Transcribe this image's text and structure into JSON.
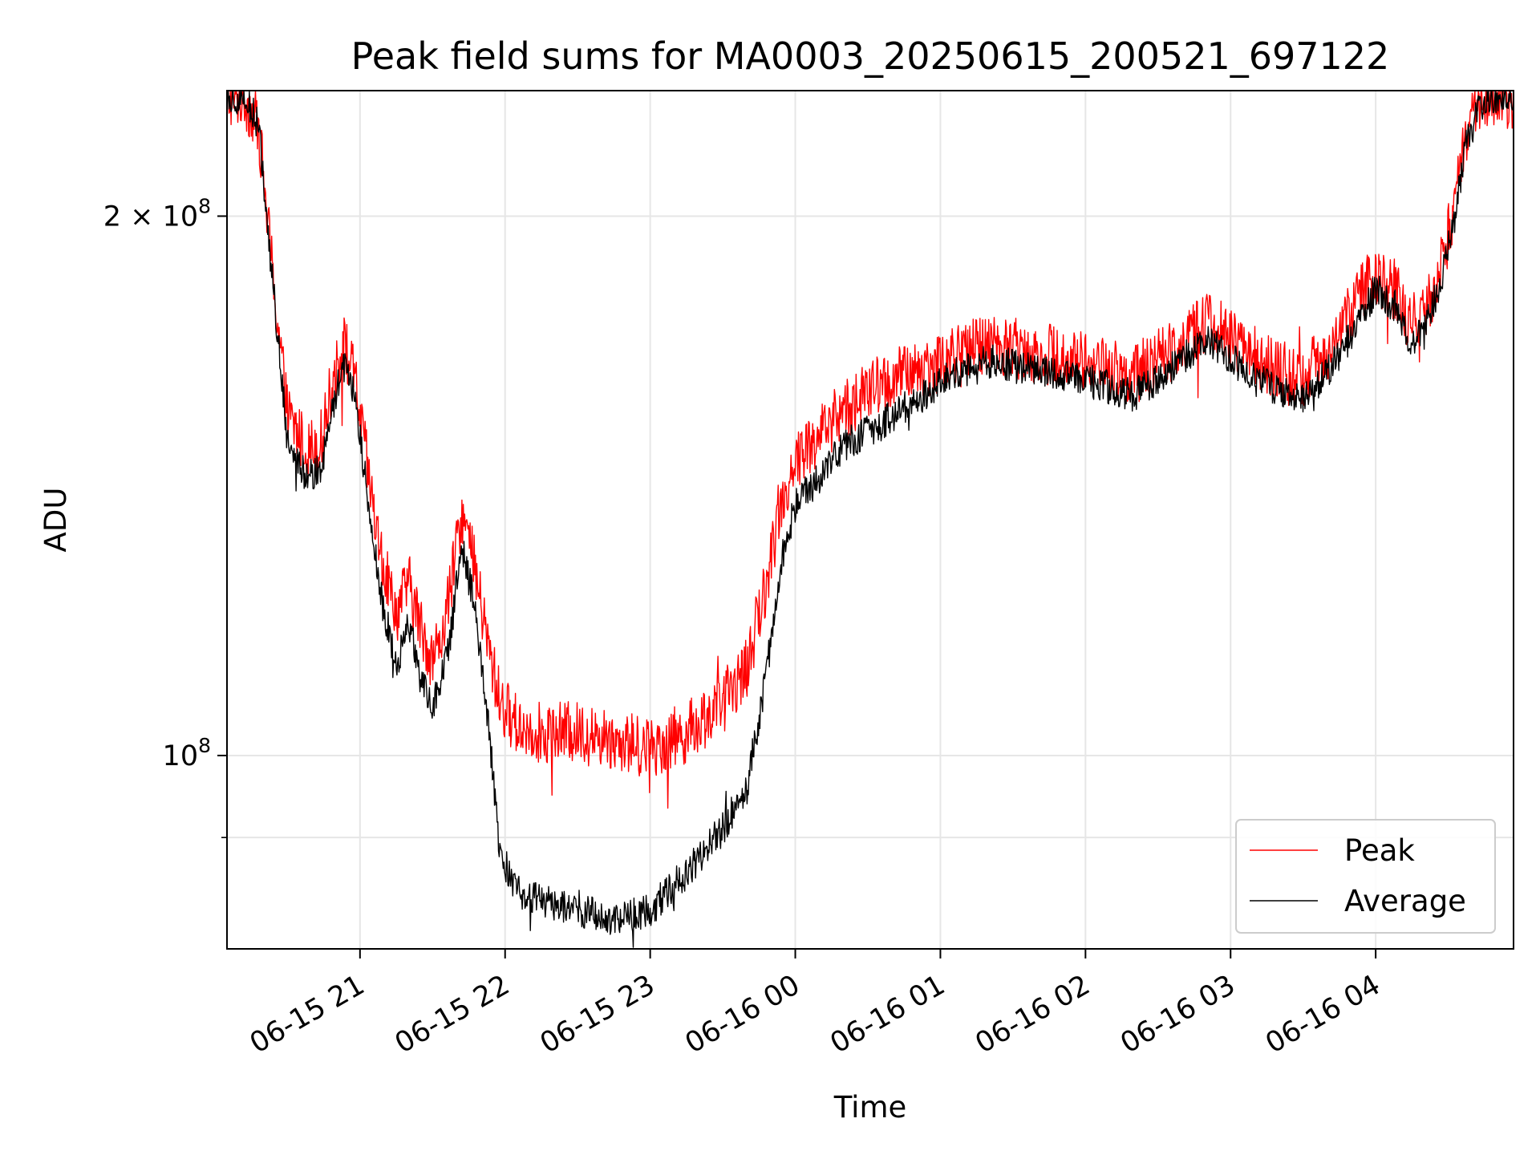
{
  "chart_data": {
    "type": "line",
    "title": "Peak field sums for MA0003_20250615_200521_697122",
    "xlabel": "Time",
    "ylabel": "ADU",
    "yscale": "log",
    "ylim": [
      78000000,
      235000000
    ],
    "xlim": [
      "2025-06-15 20:05",
      "2025-06-16 04:57"
    ],
    "grid": true,
    "legend": {
      "placement": "bottom-right",
      "entries": [
        "Peak",
        "Average"
      ]
    },
    "x_ticks": [
      "06-15 21",
      "06-15 22",
      "06-15 23",
      "06-16 00",
      "06-16 01",
      "06-16 02",
      "06-16 03",
      "06-16 04"
    ],
    "y_ticks": [
      {
        "value": 100000000,
        "mantissa": "",
        "exponent": "8"
      },
      {
        "value": 200000000,
        "mantissa": "2",
        "exponent": "8"
      }
    ],
    "y_minor_ticks": [
      90000000
    ],
    "series": [
      {
        "name": "Peak",
        "color": "#ff0000",
        "noise": 0.04,
        "x": [
          "2025-06-15 20:05",
          "2025-06-15 20:12",
          "2025-06-15 20:18",
          "2025-06-15 20:24",
          "2025-06-15 20:30",
          "2025-06-15 20:38",
          "2025-06-15 20:44",
          "2025-06-15 20:48",
          "2025-06-15 20:53",
          "2025-06-15 20:58",
          "2025-06-15 21:03",
          "2025-06-15 21:08",
          "2025-06-15 21:15",
          "2025-06-15 21:20",
          "2025-06-15 21:25",
          "2025-06-15 21:30",
          "2025-06-15 21:34",
          "2025-06-15 21:38",
          "2025-06-15 21:42",
          "2025-06-15 21:47",
          "2025-06-15 21:53",
          "2025-06-15 21:58",
          "2025-06-15 22:05",
          "2025-06-15 22:15",
          "2025-06-15 22:30",
          "2025-06-15 22:45",
          "2025-06-15 23:00",
          "2025-06-15 23:15",
          "2025-06-15 23:30",
          "2025-06-15 23:40",
          "2025-06-15 23:48",
          "2025-06-15 23:54",
          "2025-06-16 00:00",
          "2025-06-16 00:10",
          "2025-06-16 00:20",
          "2025-06-16 00:35",
          "2025-06-16 00:50",
          "2025-06-16 01:05",
          "2025-06-16 01:20",
          "2025-06-16 01:40",
          "2025-06-16 02:00",
          "2025-06-16 02:20",
          "2025-06-16 02:35",
          "2025-06-16 02:50",
          "2025-06-16 03:00",
          "2025-06-16 03:10",
          "2025-06-16 03:20",
          "2025-06-16 03:30",
          "2025-06-16 03:45",
          "2025-06-16 03:55",
          "2025-06-16 04:00",
          "2025-06-16 04:08",
          "2025-06-16 04:14",
          "2025-06-16 04:20",
          "2025-06-16 04:26",
          "2025-06-16 04:32",
          "2025-06-16 04:37",
          "2025-06-16 04:45",
          "2025-06-16 04:57"
        ],
        "values": [
          233000000,
          233000000,
          225000000,
          185000000,
          155000000,
          148000000,
          150000000,
          160000000,
          170000000,
          162000000,
          145000000,
          130000000,
          120000000,
          125000000,
          118000000,
          113000000,
          117000000,
          125000000,
          137000000,
          128000000,
          115000000,
          107000000,
          104000000,
          103000000,
          103000000,
          102000000,
          101000000,
          103000000,
          107000000,
          112000000,
          125000000,
          138000000,
          146000000,
          151000000,
          156000000,
          161000000,
          164000000,
          167000000,
          170000000,
          168000000,
          166000000,
          163000000,
          168000000,
          175000000,
          171000000,
          167000000,
          164000000,
          162000000,
          172000000,
          182000000,
          186000000,
          182000000,
          174000000,
          176000000,
          186000000,
          200000000,
          221000000,
          233000000,
          233000000
        ]
      },
      {
        "name": "Average",
        "color": "#000000",
        "noise": 0.022,
        "x": [
          "2025-06-15 20:05",
          "2025-06-15 20:12",
          "2025-06-15 20:18",
          "2025-06-15 20:24",
          "2025-06-15 20:30",
          "2025-06-15 20:38",
          "2025-06-15 20:44",
          "2025-06-15 20:48",
          "2025-06-15 20:53",
          "2025-06-15 20:58",
          "2025-06-15 21:03",
          "2025-06-15 21:08",
          "2025-06-15 21:15",
          "2025-06-15 21:20",
          "2025-06-15 21:25",
          "2025-06-15 21:30",
          "2025-06-15 21:34",
          "2025-06-15 21:38",
          "2025-06-15 21:42",
          "2025-06-15 21:47",
          "2025-06-15 21:53",
          "2025-06-15 21:58",
          "2025-06-15 22:05",
          "2025-06-15 22:15",
          "2025-06-15 22:30",
          "2025-06-15 22:45",
          "2025-06-15 23:00",
          "2025-06-15 23:15",
          "2025-06-15 23:30",
          "2025-06-15 23:40",
          "2025-06-15 23:48",
          "2025-06-15 23:54",
          "2025-06-16 00:00",
          "2025-06-16 00:10",
          "2025-06-16 00:20",
          "2025-06-16 00:35",
          "2025-06-16 00:50",
          "2025-06-16 01:05",
          "2025-06-16 01:20",
          "2025-06-16 01:40",
          "2025-06-16 02:00",
          "2025-06-16 02:20",
          "2025-06-16 02:35",
          "2025-06-16 02:50",
          "2025-06-16 03:00",
          "2025-06-16 03:10",
          "2025-06-16 03:20",
          "2025-06-16 03:30",
          "2025-06-16 03:45",
          "2025-06-16 03:55",
          "2025-06-16 04:00",
          "2025-06-16 04:08",
          "2025-06-16 04:14",
          "2025-06-16 04:20",
          "2025-06-16 04:26",
          "2025-06-16 04:32",
          "2025-06-16 04:37",
          "2025-06-16 04:45",
          "2025-06-16 04:57"
        ],
        "values": [
          233000000,
          233000000,
          225000000,
          183000000,
          150000000,
          143000000,
          145000000,
          155000000,
          165000000,
          158000000,
          140000000,
          124000000,
          112000000,
          119000000,
          110000000,
          106000000,
          111000000,
          118000000,
          131000000,
          122000000,
          104000000,
          88000000,
          84000000,
          83000000,
          82000000,
          81000000,
          82000000,
          86000000,
          91000000,
          96000000,
          111000000,
          128000000,
          138000000,
          143000000,
          149000000,
          153000000,
          158000000,
          163000000,
          166000000,
          164000000,
          162000000,
          159000000,
          164000000,
          171000000,
          167000000,
          162000000,
          160000000,
          158000000,
          167000000,
          177000000,
          182000000,
          178000000,
          170000000,
          172000000,
          182000000,
          197000000,
          219000000,
          233000000,
          233000000
        ]
      }
    ]
  }
}
